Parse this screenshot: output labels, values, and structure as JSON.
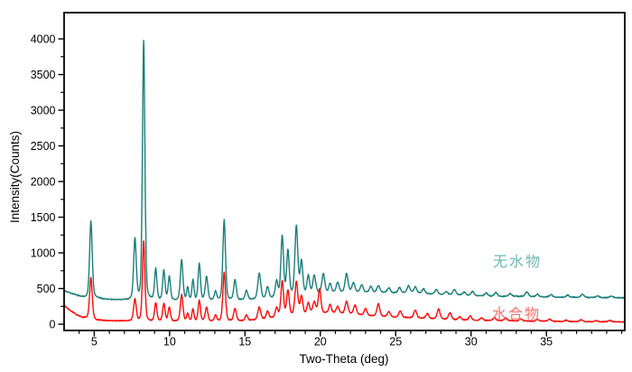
{
  "figure": {
    "background": "#ffffff",
    "frame_color": "#000000",
    "tick_color": "#000000",
    "text_color": "#000000"
  },
  "chart_data": {
    "type": "line",
    "title": "",
    "xlabel": "Two-Theta (deg)",
    "ylabel": "Intensity(Counts)",
    "xlim": [
      3,
      40.2
    ],
    "ylim": [
      -88,
      4368
    ],
    "grid": false,
    "x_major_ticks": [
      5,
      10,
      15,
      20,
      25,
      30,
      35
    ],
    "x_minor_step": 1,
    "y_major_ticks": [
      0,
      500,
      1000,
      1500,
      2000,
      2500,
      3000,
      3500,
      4000
    ],
    "y_minor_step": 250,
    "legend_position": "inside-right",
    "series": [
      {
        "name": "无水物",
        "color": "#1a7f7a",
        "label_color": "#6cb8b4",
        "noise": 9,
        "seed": 7,
        "baseline": [
          [
            3,
            470
          ],
          [
            3.5,
            430
          ],
          [
            4.1,
            385
          ],
          [
            4.5,
            372
          ],
          [
            5.1,
            368
          ],
          [
            5.6,
            352
          ],
          [
            6.2,
            342
          ],
          [
            7,
            338
          ],
          [
            8,
            336
          ],
          [
            9,
            334
          ],
          [
            10,
            332
          ],
          [
            11,
            330
          ],
          [
            12,
            330
          ],
          [
            13,
            332
          ],
          [
            14,
            334
          ],
          [
            15,
            340
          ],
          [
            16,
            350
          ],
          [
            16.8,
            366
          ],
          [
            17.6,
            390
          ],
          [
            18.4,
            405
          ],
          [
            19.2,
            420
          ],
          [
            20,
            430
          ],
          [
            21,
            442
          ],
          [
            22,
            448
          ],
          [
            23,
            440
          ],
          [
            24,
            446
          ],
          [
            25,
            438
          ],
          [
            26,
            442
          ],
          [
            27,
            428
          ],
          [
            28,
            415
          ],
          [
            29,
            412
          ],
          [
            30,
            400
          ],
          [
            31,
            394
          ],
          [
            32,
            390
          ],
          [
            33,
            390
          ],
          [
            34,
            384
          ],
          [
            35,
            382
          ],
          [
            36,
            378
          ],
          [
            37,
            376
          ],
          [
            38,
            374
          ],
          [
            39,
            372
          ],
          [
            40.2,
            370
          ]
        ],
        "peaks": [
          [
            4.78,
            1075,
            0.09
          ],
          [
            7.7,
            855,
            0.09
          ],
          [
            8.28,
            3630,
            0.085
          ],
          [
            9.08,
            430,
            0.08
          ],
          [
            9.62,
            415,
            0.08
          ],
          [
            9.98,
            330,
            0.08
          ],
          [
            10.8,
            565,
            0.09
          ],
          [
            11.2,
            180,
            0.07
          ],
          [
            11.55,
            285,
            0.07
          ],
          [
            11.97,
            520,
            0.08
          ],
          [
            12.45,
            330,
            0.09
          ],
          [
            13.05,
            120,
            0.08
          ],
          [
            13.62,
            1130,
            0.09
          ],
          [
            14.34,
            285,
            0.09
          ],
          [
            15.1,
            130,
            0.09
          ],
          [
            15.95,
            365,
            0.1
          ],
          [
            16.5,
            160,
            0.09
          ],
          [
            17.1,
            220,
            0.09
          ],
          [
            17.47,
            845,
            0.09
          ],
          [
            17.85,
            625,
            0.09
          ],
          [
            18.41,
            965,
            0.1
          ],
          [
            18.75,
            460,
            0.09
          ],
          [
            19.2,
            255,
            0.09
          ],
          [
            19.6,
            255,
            0.1
          ],
          [
            20.2,
            275,
            0.1
          ],
          [
            20.65,
            130,
            0.09
          ],
          [
            21.15,
            140,
            0.1
          ],
          [
            21.74,
            265,
            0.1
          ],
          [
            22.2,
            135,
            0.1
          ],
          [
            22.75,
            110,
            0.1
          ],
          [
            23.35,
            85,
            0.1
          ],
          [
            23.85,
            95,
            0.1
          ],
          [
            24.55,
            65,
            0.1
          ],
          [
            25.25,
            75,
            0.1
          ],
          [
            25.85,
            95,
            0.1
          ],
          [
            26.3,
            85,
            0.1
          ],
          [
            26.85,
            65,
            0.1
          ],
          [
            27.7,
            70,
            0.1
          ],
          [
            28.35,
            45,
            0.1
          ],
          [
            28.9,
            75,
            0.1
          ],
          [
            29.55,
            45,
            0.1
          ],
          [
            30.1,
            60,
            0.1
          ],
          [
            31,
            45,
            0.1
          ],
          [
            31.65,
            55,
            0.1
          ],
          [
            32.6,
            40,
            0.1
          ],
          [
            33.7,
            65,
            0.12
          ],
          [
            34.4,
            35,
            0.1
          ],
          [
            35.3,
            35,
            0.1
          ],
          [
            36.4,
            30,
            0.1
          ],
          [
            37.4,
            45,
            0.1
          ],
          [
            38.4,
            25,
            0.1
          ],
          [
            39.3,
            25,
            0.1
          ]
        ]
      },
      {
        "name": "水合物",
        "color": "#f90b08",
        "label_color": "#f4736d",
        "noise": 8,
        "seed": 13,
        "baseline": [
          [
            3,
            265
          ],
          [
            3.4,
            195
          ],
          [
            3.8,
            135
          ],
          [
            4.2,
            95
          ],
          [
            4.6,
            80
          ],
          [
            5.2,
            55
          ],
          [
            6,
            48
          ],
          [
            7,
            45
          ],
          [
            8,
            42
          ],
          [
            9,
            40
          ],
          [
            10,
            40
          ],
          [
            11,
            38
          ],
          [
            12,
            38
          ],
          [
            13,
            40
          ],
          [
            14,
            42
          ],
          [
            15,
            48
          ],
          [
            16,
            62
          ],
          [
            17,
            92
          ],
          [
            17.8,
            115
          ],
          [
            18.6,
            130
          ],
          [
            19.4,
            148
          ],
          [
            20.2,
            155
          ],
          [
            21,
            152
          ],
          [
            22,
            138
          ],
          [
            23,
            120
          ],
          [
            24,
            108
          ],
          [
            25,
            98
          ],
          [
            26,
            90
          ],
          [
            27,
            80
          ],
          [
            28,
            72
          ],
          [
            29,
            62
          ],
          [
            30,
            55
          ],
          [
            31,
            52
          ],
          [
            32,
            50
          ],
          [
            33,
            46
          ],
          [
            34,
            42
          ],
          [
            35,
            42
          ],
          [
            36,
            38
          ],
          [
            37,
            36
          ],
          [
            38,
            34
          ],
          [
            39,
            34
          ],
          [
            40.2,
            32
          ]
        ],
        "peaks": [
          [
            4.78,
            585,
            0.09
          ],
          [
            7.7,
            310,
            0.09
          ],
          [
            8.28,
            1125,
            0.085
          ],
          [
            9.08,
            255,
            0.08
          ],
          [
            9.62,
            245,
            0.08
          ],
          [
            9.98,
            195,
            0.08
          ],
          [
            10.8,
            375,
            0.09
          ],
          [
            11.2,
            110,
            0.07
          ],
          [
            11.55,
            170,
            0.07
          ],
          [
            11.97,
            295,
            0.08
          ],
          [
            12.45,
            195,
            0.09
          ],
          [
            13.05,
            80,
            0.08
          ],
          [
            13.62,
            680,
            0.09
          ],
          [
            14.34,
            175,
            0.09
          ],
          [
            15.1,
            75,
            0.09
          ],
          [
            15.95,
            175,
            0.1
          ],
          [
            16.5,
            100,
            0.09
          ],
          [
            17.1,
            130,
            0.09
          ],
          [
            17.47,
            495,
            0.09
          ],
          [
            17.85,
            355,
            0.09
          ],
          [
            18.41,
            465,
            0.1
          ],
          [
            18.75,
            255,
            0.09
          ],
          [
            19.2,
            150,
            0.09
          ],
          [
            19.6,
            160,
            0.1
          ],
          [
            19.95,
            340,
            0.09
          ],
          [
            20.65,
            120,
            0.09
          ],
          [
            21.15,
            95,
            0.1
          ],
          [
            21.74,
            180,
            0.1
          ],
          [
            22.3,
            135,
            0.1
          ],
          [
            23,
            95,
            0.1
          ],
          [
            23.85,
            175,
            0.1
          ],
          [
            24.55,
            70,
            0.1
          ],
          [
            25.3,
            90,
            0.1
          ],
          [
            26.3,
            110,
            0.1
          ],
          [
            27.1,
            70,
            0.1
          ],
          [
            27.85,
            140,
            0.1
          ],
          [
            28.6,
            95,
            0.1
          ],
          [
            29.25,
            45,
            0.1
          ],
          [
            29.95,
            60,
            0.1
          ],
          [
            30.7,
            35,
            0.1
          ],
          [
            31.55,
            40,
            0.1
          ],
          [
            32.3,
            35,
            0.1
          ],
          [
            33.3,
            30,
            0.1
          ],
          [
            34.4,
            25,
            0.1
          ],
          [
            35.2,
            30,
            0.1
          ],
          [
            36.3,
            20,
            0.1
          ],
          [
            37.3,
            25,
            0.1
          ],
          [
            38.3,
            20,
            0.1
          ],
          [
            39.2,
            20,
            0.1
          ]
        ]
      }
    ]
  }
}
